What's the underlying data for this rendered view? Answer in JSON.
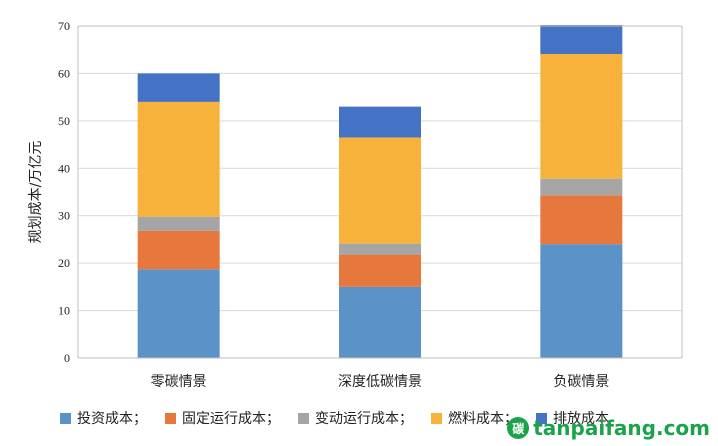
{
  "chart_data": {
    "type": "bar",
    "stacked": true,
    "ylabel": "规划成本/万亿元",
    "xlabel": "",
    "ylim": [
      0,
      70
    ],
    "yticks": [
      0,
      10,
      20,
      30,
      40,
      50,
      60,
      70
    ],
    "grid": true,
    "legend_position": "bottom",
    "categories": [
      "零碳情景",
      "深度低碳情景",
      "负碳情景"
    ],
    "series": [
      {
        "name": "投资成本；",
        "color": "#5b93c9",
        "values": [
          18.7,
          15.0,
          24.0
        ]
      },
      {
        "name": "固定运行成本；",
        "color": "#e6783e",
        "values": [
          8.1,
          6.8,
          10.3
        ]
      },
      {
        "name": "变动运行成本；",
        "color": "#a5a5a5",
        "values": [
          3.0,
          2.3,
          3.5
        ]
      },
      {
        "name": "燃料成本；",
        "color": "#f6b23b",
        "values": [
          24.2,
          22.4,
          26.3
        ]
      },
      {
        "name": "排放成本",
        "color": "#4472c4",
        "values": [
          6.0,
          6.5,
          6.1
        ]
      }
    ]
  },
  "watermark": {
    "logo": "碳",
    "text": "tanpaifang.com"
  }
}
